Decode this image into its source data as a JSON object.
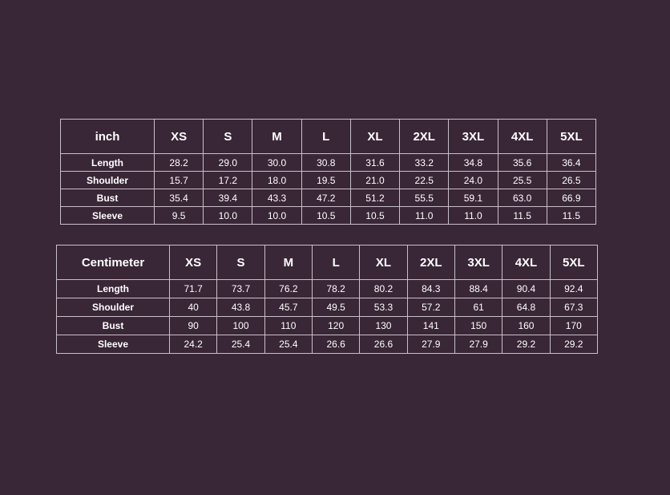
{
  "page": {
    "colors": {
      "background": "#392636",
      "table_border": "#c9c0c8",
      "text": "#ffffff"
    }
  },
  "chart_data": [
    {
      "type": "table",
      "unit": "inch",
      "columns": [
        "XS",
        "S",
        "M",
        "L",
        "XL",
        "2XL",
        "3XL",
        "4XL",
        "5XL"
      ],
      "rows": [
        {
          "label": "Length",
          "values": [
            "28.2",
            "29.0",
            "30.0",
            "30.8",
            "31.6",
            "33.2",
            "34.8",
            "35.6",
            "36.4"
          ]
        },
        {
          "label": "Shoulder",
          "values": [
            "15.7",
            "17.2",
            "18.0",
            "19.5",
            "21.0",
            "22.5",
            "24.0",
            "25.5",
            "26.5"
          ]
        },
        {
          "label": "Bust",
          "values": [
            "35.4",
            "39.4",
            "43.3",
            "47.2",
            "51.2",
            "55.5",
            "59.1",
            "63.0",
            "66.9"
          ]
        },
        {
          "label": "Sleeve",
          "values": [
            "9.5",
            "10.0",
            "10.0",
            "10.5",
            "10.5",
            "11.0",
            "11.0",
            "11.5",
            "11.5"
          ]
        }
      ]
    },
    {
      "type": "table",
      "unit": "Centimeter",
      "columns": [
        "XS",
        "S",
        "M",
        "L",
        "XL",
        "2XL",
        "3XL",
        "4XL",
        "5XL"
      ],
      "rows": [
        {
          "label": "Length",
          "values": [
            "71.7",
            "73.7",
            "76.2",
            "78.2",
            "80.2",
            "84.3",
            "88.4",
            "90.4",
            "92.4"
          ]
        },
        {
          "label": "Shoulder",
          "values": [
            "40",
            "43.8",
            "45.7",
            "49.5",
            "53.3",
            "57.2",
            "61",
            "64.8",
            "67.3"
          ]
        },
        {
          "label": "Bust",
          "values": [
            "90",
            "100",
            "110",
            "120",
            "130",
            "141",
            "150",
            "160",
            "170"
          ]
        },
        {
          "label": "Sleeve",
          "values": [
            "24.2",
            "25.4",
            "25.4",
            "26.6",
            "26.6",
            "27.9",
            "27.9",
            "29.2",
            "29.2"
          ]
        }
      ]
    }
  ]
}
